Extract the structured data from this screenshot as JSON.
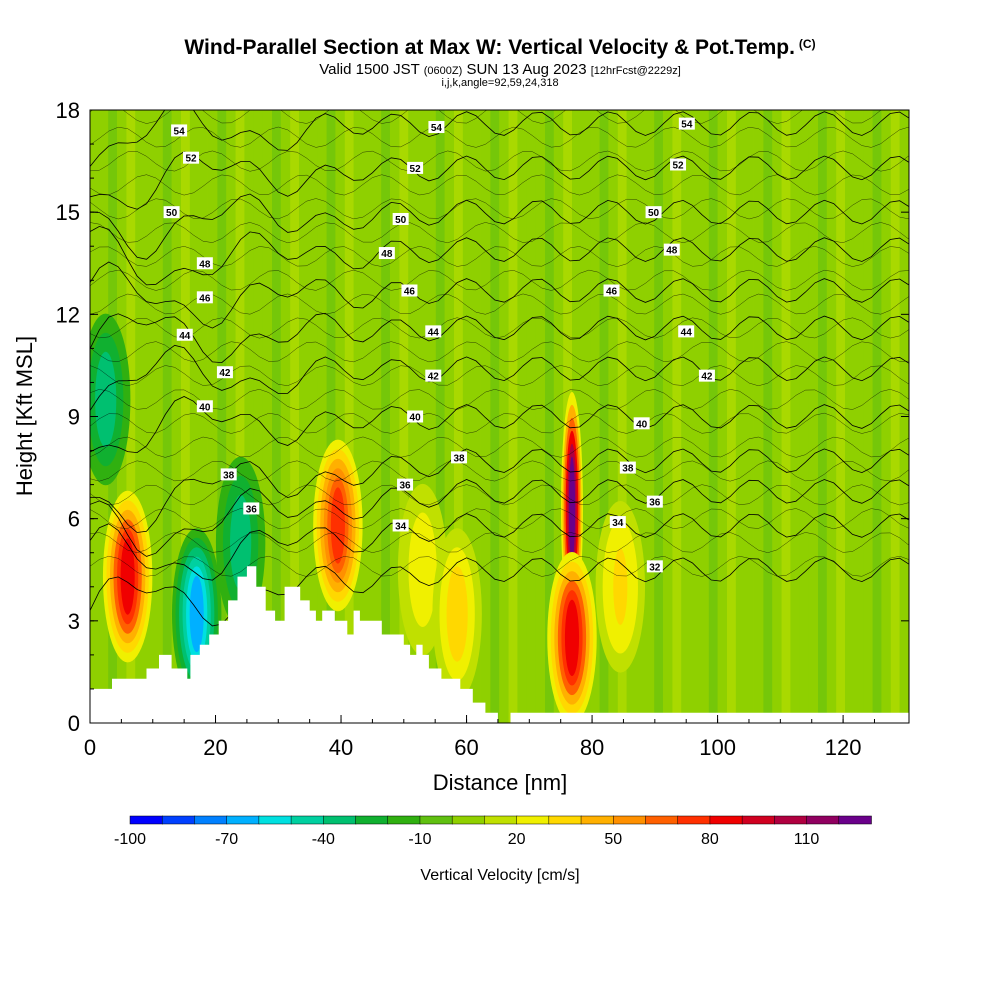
{
  "title": {
    "main": "Wind-Parallel Section at Max W: Vertical Velocity & Pot.Temp.",
    "copyright": "(C)",
    "valid_prefix": "Valid 1500 JST",
    "valid_utc": "(0600Z)",
    "valid_date": "SUN 13 Aug 2023",
    "forecast": "[12hrFcst@2229z]",
    "indices": "i,j,k,angle=92,59,24,318"
  },
  "chart_data": {
    "type": "heatmap",
    "xlabel": "Distance [nm]",
    "ylabel": "Height [Kft MSL]",
    "xlim": [
      0,
      130.5
    ],
    "ylim": [
      0,
      18
    ],
    "xticks": [
      "0",
      "20",
      "40",
      "60",
      "80",
      "100",
      "120"
    ],
    "yticks": [
      "0",
      "3",
      "6",
      "9",
      "12",
      "15",
      "18"
    ],
    "colorbar": {
      "title": "Vertical Velocity [cm/s]",
      "range": [
        -100,
        130
      ],
      "tick_labels": [
        "-100",
        "-70",
        "-40",
        "-10",
        "20",
        "50",
        "80",
        "110"
      ],
      "tick_values": [
        -100,
        -70,
        -40,
        -10,
        20,
        50,
        80,
        110
      ],
      "colors": [
        "#0000ff",
        "#0040ff",
        "#0080ff",
        "#00b0ff",
        "#00e0e0",
        "#00d0a0",
        "#00c070",
        "#10b030",
        "#30b010",
        "#60c010",
        "#90d000",
        "#c0e000",
        "#f0f000",
        "#ffd800",
        "#ffb000",
        "#ff9000",
        "#ff6000",
        "#ff3000",
        "#f00000",
        "#d00020",
        "#b00040",
        "#900060",
        "#6a008a"
      ]
    },
    "velocity_features": [
      {
        "x": 6,
        "y": 4.3,
        "w": 85,
        "kind": "updraft"
      },
      {
        "x": 17,
        "y": 3.2,
        "w": -65,
        "kind": "downdraft"
      },
      {
        "x": 24,
        "y": 5.3,
        "w": -40,
        "kind": "downdraft"
      },
      {
        "x": 39.5,
        "y": 5.8,
        "w": 70,
        "kind": "updraft"
      },
      {
        "x": 53,
        "y": 4.5,
        "w": 25,
        "kind": "updraft"
      },
      {
        "x": 58.5,
        "y": 3.2,
        "w": 35,
        "kind": "updraft"
      },
      {
        "x": 76.8,
        "y": 6.3,
        "w": 120,
        "kind": "updraft"
      },
      {
        "x": 76.8,
        "y": 2.5,
        "w": 85,
        "kind": "updraft"
      },
      {
        "x": 2.5,
        "y": 9.5,
        "w": -40,
        "kind": "downdraft"
      },
      {
        "x": 84.5,
        "y": 4.0,
        "w": 30,
        "kind": "updraft"
      }
    ],
    "theta_contours": [
      "32",
      "34",
      "36",
      "38",
      "40",
      "42",
      "44",
      "46",
      "48",
      "50",
      "52",
      "54"
    ],
    "contour_labels": [
      {
        "text": "54",
        "x": 14.2,
        "y": 17.4
      },
      {
        "text": "54",
        "x": 55.2,
        "y": 17.5
      },
      {
        "text": "54",
        "x": 95.1,
        "y": 17.6
      },
      {
        "text": "52",
        "x": 16.1,
        "y": 16.6
      },
      {
        "text": "52",
        "x": 51.8,
        "y": 16.3
      },
      {
        "text": "52",
        "x": 93.7,
        "y": 16.4
      },
      {
        "text": "50",
        "x": 13.0,
        "y": 15.0
      },
      {
        "text": "50",
        "x": 49.5,
        "y": 14.8
      },
      {
        "text": "50",
        "x": 89.8,
        "y": 15.0
      },
      {
        "text": "48",
        "x": 18.3,
        "y": 13.5
      },
      {
        "text": "48",
        "x": 47.3,
        "y": 13.8
      },
      {
        "text": "48",
        "x": 92.7,
        "y": 13.9
      },
      {
        "text": "46",
        "x": 18.3,
        "y": 12.5
      },
      {
        "text": "46",
        "x": 50.9,
        "y": 12.7
      },
      {
        "text": "46",
        "x": 83.1,
        "y": 12.7
      },
      {
        "text": "44",
        "x": 15.1,
        "y": 11.4
      },
      {
        "text": "44",
        "x": 54.7,
        "y": 11.5
      },
      {
        "text": "44",
        "x": 95.0,
        "y": 11.5
      },
      {
        "text": "42",
        "x": 21.5,
        "y": 10.3
      },
      {
        "text": "42",
        "x": 54.7,
        "y": 10.2
      },
      {
        "text": "42",
        "x": 98.3,
        "y": 10.2
      },
      {
        "text": "40",
        "x": 18.3,
        "y": 9.3
      },
      {
        "text": "40",
        "x": 51.8,
        "y": 9.0
      },
      {
        "text": "40",
        "x": 87.9,
        "y": 8.8
      },
      {
        "text": "38",
        "x": 22.1,
        "y": 7.3
      },
      {
        "text": "38",
        "x": 58.8,
        "y": 7.8
      },
      {
        "text": "38",
        "x": 85.7,
        "y": 7.5
      },
      {
        "text": "36",
        "x": 25.7,
        "y": 6.3
      },
      {
        "text": "36",
        "x": 50.2,
        "y": 7.0
      },
      {
        "text": "36",
        "x": 90.0,
        "y": 6.5
      },
      {
        "text": "34",
        "x": 49.5,
        "y": 5.8
      },
      {
        "text": "34",
        "x": 84.1,
        "y": 5.9
      },
      {
        "text": "32",
        "x": 90.0,
        "y": 4.6
      }
    ],
    "terrain_profile": {
      "x": [
        0,
        3.5,
        3.5,
        9,
        9,
        11,
        11,
        13,
        13,
        15.5,
        15.5,
        16,
        16,
        17.5,
        17.5,
        19,
        19,
        20.5,
        20.5,
        22,
        22,
        23.5,
        23.5,
        25,
        25,
        26.5,
        26.5,
        28,
        28,
        29.5,
        29.5,
        31,
        31,
        33.5,
        33.5,
        35,
        35,
        36,
        36,
        37,
        37,
        39,
        39,
        41,
        41,
        42,
        42,
        43,
        43,
        46.5,
        46.5,
        50,
        50,
        51,
        51,
        52,
        52,
        53,
        53,
        54,
        54,
        56,
        56,
        59,
        59,
        61,
        61,
        63,
        63,
        65,
        65,
        67,
        67,
        130.5
      ],
      "y": [
        1.0,
        1.0,
        1.3,
        1.3,
        1.6,
        1.6,
        2.0,
        2.0,
        1.6,
        1.6,
        1.3,
        1.3,
        2.0,
        2.0,
        2.3,
        2.3,
        2.6,
        2.6,
        3.0,
        3.0,
        3.6,
        3.6,
        4.3,
        4.3,
        4.6,
        4.6,
        4.0,
        4.0,
        3.3,
        3.3,
        3.0,
        3.0,
        4.0,
        4.0,
        3.6,
        3.6,
        3.3,
        3.3,
        3.0,
        3.0,
        3.3,
        3.3,
        3.0,
        3.0,
        2.6,
        2.6,
        3.3,
        3.3,
        3.0,
        3.0,
        2.6,
        2.6,
        2.3,
        2.3,
        2.0,
        2.0,
        2.3,
        2.3,
        2.0,
        2.0,
        1.6,
        1.6,
        1.3,
        1.3,
        1.0,
        1.0,
        0.6,
        0.6,
        0.3,
        0.3,
        0.0,
        0.0,
        0.3,
        0.3
      ]
    }
  }
}
